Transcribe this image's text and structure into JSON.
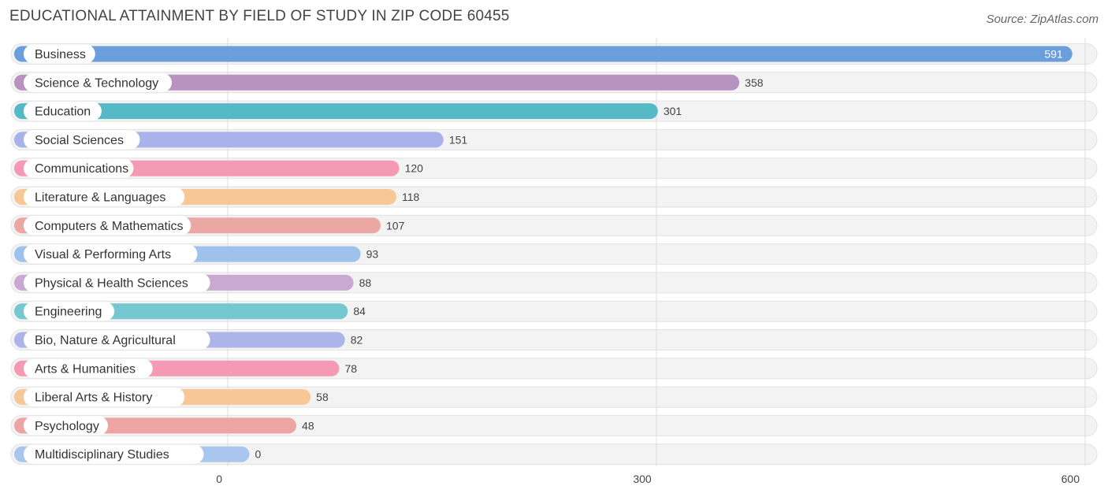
{
  "chart_data": {
    "type": "bar",
    "orientation": "horizontal",
    "title": "EDUCATIONAL ATTAINMENT BY FIELD OF STUDY IN ZIP CODE 60455",
    "source": "Source: ZipAtlas.com",
    "xlim": [
      0,
      600
    ],
    "ticks": [
      0,
      300,
      600
    ],
    "grid": true,
    "categories": [
      "Business",
      "Science & Technology",
      "Education",
      "Social Sciences",
      "Communications",
      "Literature & Languages",
      "Computers & Mathematics",
      "Visual & Performing Arts",
      "Physical & Health Sciences",
      "Engineering",
      "Bio, Nature & Agricultural",
      "Arts & Humanities",
      "Liberal Arts & History",
      "Psychology",
      "Multidisciplinary Studies"
    ],
    "values": [
      591,
      358,
      301,
      151,
      120,
      118,
      107,
      93,
      88,
      84,
      82,
      78,
      58,
      48,
      0
    ],
    "colors": [
      "#6a9fdc",
      "#b893c2",
      "#56bac6",
      "#a9b2ea",
      "#f49ab6",
      "#f8c796",
      "#eaa7a4",
      "#9fc2ec",
      "#c9a8d2",
      "#75c7d0",
      "#aeb4ea",
      "#f49ab6",
      "#f8c796",
      "#eda5a4",
      "#a9c7ee"
    ]
  }
}
